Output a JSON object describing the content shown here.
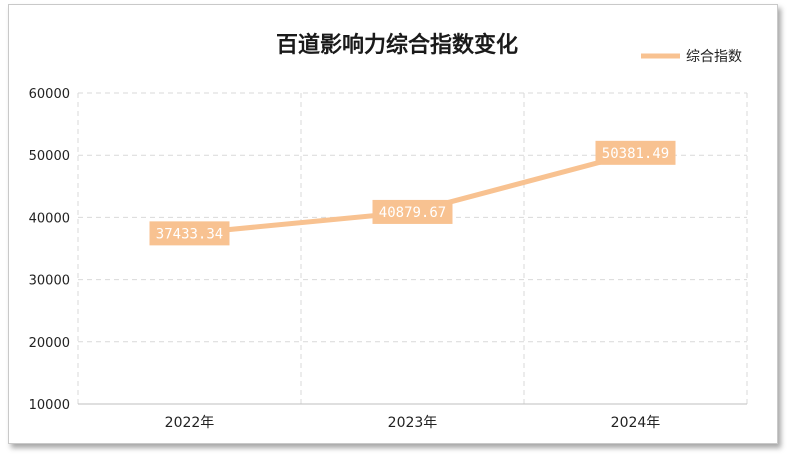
{
  "chart_data": {
    "type": "line",
    "title": "百道影响力综合指数变化",
    "categories": [
      "2022年",
      "2023年",
      "2024年"
    ],
    "series": [
      {
        "name": "综合指数",
        "values": [
          37433.34,
          40879.67,
          50381.49
        ]
      }
    ],
    "data_labels": [
      "37433.34",
      "40879.67",
      "50381.49"
    ],
    "yticks": [
      "10000",
      "20000",
      "30000",
      "40000",
      "50000",
      "60000"
    ],
    "ylim": [
      10000,
      60000
    ],
    "grid": true,
    "legend": "top-right",
    "colors": {
      "line": "#f8c291",
      "label_bg": "#f8c291",
      "grid": "#d9d9d9",
      "axis": "#bfbfbf"
    }
  }
}
